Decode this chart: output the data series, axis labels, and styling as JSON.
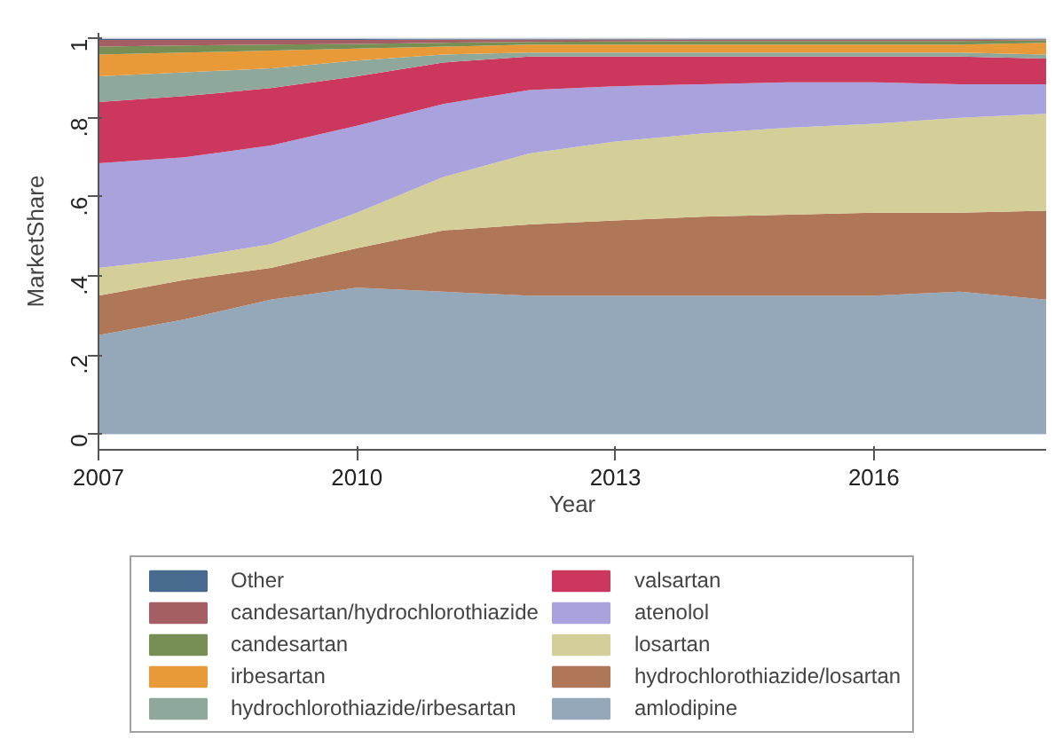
{
  "chart_data": {
    "type": "area",
    "stacked": true,
    "xlabel": "Year",
    "ylabel": "MarketShare",
    "x": [
      2007,
      2008,
      2009,
      2010,
      2011,
      2012,
      2013,
      2014,
      2015,
      2016,
      2017,
      2018
    ],
    "xlim": [
      2007,
      2018
    ],
    "xticks": [
      2007,
      2010,
      2013,
      2016
    ],
    "ylim": [
      -0.04,
      1.015
    ],
    "yticks": [
      0,
      {
        "value": 0.2,
        "label": ".2"
      },
      {
        "value": 0.4,
        "label": ".4"
      },
      {
        "value": 0.6,
        "label": ".6"
      },
      {
        "value": 0.8,
        "label": ".8"
      },
      1
    ],
    "grid": "y",
    "legend": "bottom",
    "series": [
      {
        "name": "amlodipine",
        "color": "#94a8b9",
        "values": [
          0.25,
          0.29,
          0.34,
          0.37,
          0.36,
          0.35,
          0.35,
          0.35,
          0.35,
          0.35,
          0.36,
          0.34
        ]
      },
      {
        "name": "hydrochlorothiazide/losartan",
        "color": "#b07658",
        "values": [
          0.1,
          0.1,
          0.08,
          0.1,
          0.155,
          0.18,
          0.19,
          0.2,
          0.205,
          0.21,
          0.2,
          0.225
        ]
      },
      {
        "name": "losartan",
        "color": "#d4ce98",
        "values": [
          0.07,
          0.055,
          0.06,
          0.09,
          0.135,
          0.18,
          0.2,
          0.21,
          0.22,
          0.225,
          0.24,
          0.245
        ]
      },
      {
        "name": "atenolol",
        "color": "#a9a2dc",
        "values": [
          0.265,
          0.255,
          0.25,
          0.22,
          0.185,
          0.16,
          0.14,
          0.125,
          0.115,
          0.105,
          0.085,
          0.075
        ]
      },
      {
        "name": "valsartan",
        "color": "#cc375d",
        "values": [
          0.155,
          0.155,
          0.145,
          0.125,
          0.105,
          0.085,
          0.075,
          0.07,
          0.065,
          0.065,
          0.07,
          0.065
        ]
      },
      {
        "name": "hydrochlorothiazide/irbesartan",
        "color": "#8ea99b",
        "values": [
          0.065,
          0.06,
          0.05,
          0.04,
          0.02,
          0.01,
          0.01,
          0.01,
          0.01,
          0.01,
          0.01,
          0.01
        ]
      },
      {
        "name": "irbesartan",
        "color": "#e89a38",
        "values": [
          0.055,
          0.05,
          0.045,
          0.03,
          0.02,
          0.02,
          0.02,
          0.02,
          0.02,
          0.02,
          0.02,
          0.03
        ]
      },
      {
        "name": "candesartan",
        "color": "#778f55",
        "values": [
          0.02,
          0.018,
          0.015,
          0.012,
          0.01,
          0.007,
          0.008,
          0.009,
          0.009,
          0.009,
          0.009,
          0.006
        ]
      },
      {
        "name": "candesartan/hydrochlorothiazide",
        "color": "#a55e64",
        "values": [
          0.017,
          0.014,
          0.012,
          0.01,
          0.008,
          0.006,
          0.005,
          0.004,
          0.004,
          0.004,
          0.004,
          0.002
        ]
      },
      {
        "name": "Other",
        "color": "#476a8e",
        "values": [
          0.003,
          0.003,
          0.003,
          0.003,
          0.002,
          0.002,
          0.002,
          0.002,
          0.002,
          0.002,
          0.002,
          0.002
        ]
      }
    ]
  }
}
